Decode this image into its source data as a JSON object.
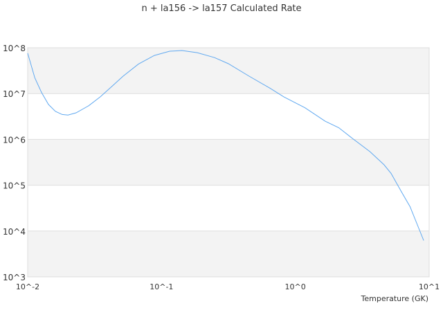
{
  "chart_data": {
    "type": "line",
    "title": "n + la156 -> la157 Calculated Rate",
    "xlabel": "Temperature (GK)",
    "ylabel": "",
    "xscale": "log",
    "yscale": "log",
    "xlim": [
      0.01,
      10
    ],
    "ylim": [
      1000,
      100000000
    ],
    "xticks": [
      {
        "value": 0.01,
        "label": "10^-2"
      },
      {
        "value": 0.1,
        "label": "10^-1"
      },
      {
        "value": 1,
        "label": "10^0"
      },
      {
        "value": 10,
        "label": "10^1"
      }
    ],
    "yticks": [
      {
        "value": 1000,
        "label": "10^3"
      },
      {
        "value": 10000,
        "label": "10^4"
      },
      {
        "value": 100000,
        "label": "10^5"
      },
      {
        "value": 1000000,
        "label": "10^6"
      },
      {
        "value": 10000000,
        "label": "10^7"
      },
      {
        "value": 100000000,
        "label": "10^8"
      }
    ],
    "grid": "alternating horizontal bands",
    "legend": "none",
    "colors": {
      "line": "#5fa8f0",
      "band": "#f3f3f3",
      "grid": "#dddddd"
    },
    "series": [
      {
        "x": [
          0.01,
          0.0113,
          0.0127,
          0.0143,
          0.0161,
          0.0181,
          0.02,
          0.023,
          0.0285,
          0.0349,
          0.0433,
          0.0517,
          0.0672,
          0.0884,
          0.115,
          0.142,
          0.185,
          0.249,
          0.316,
          0.451,
          0.65,
          0.82,
          1.18,
          1.67,
          2.11,
          2.62,
          3.61,
          4.6,
          5.2,
          6.2,
          7.2,
          9.1
        ],
        "y": [
          76000000.0,
          22000000.0,
          10500000.0,
          5800000.0,
          4100000.0,
          3500000.0,
          3400000.0,
          3800000.0,
          5400000.0,
          8500000.0,
          15000000.0,
          24000000.0,
          44000000.0,
          68000000.0,
          84000000.0,
          87000000.0,
          78000000.0,
          61000000.0,
          45000000.0,
          24000000.0,
          13000000.0,
          8500000.0,
          4900000.0,
          2500000.0,
          1800000.0,
          1100000.0,
          540000.0,
          280000.0,
          180000.0,
          72000.0,
          34000.0,
          6200.0
        ]
      }
    ]
  }
}
